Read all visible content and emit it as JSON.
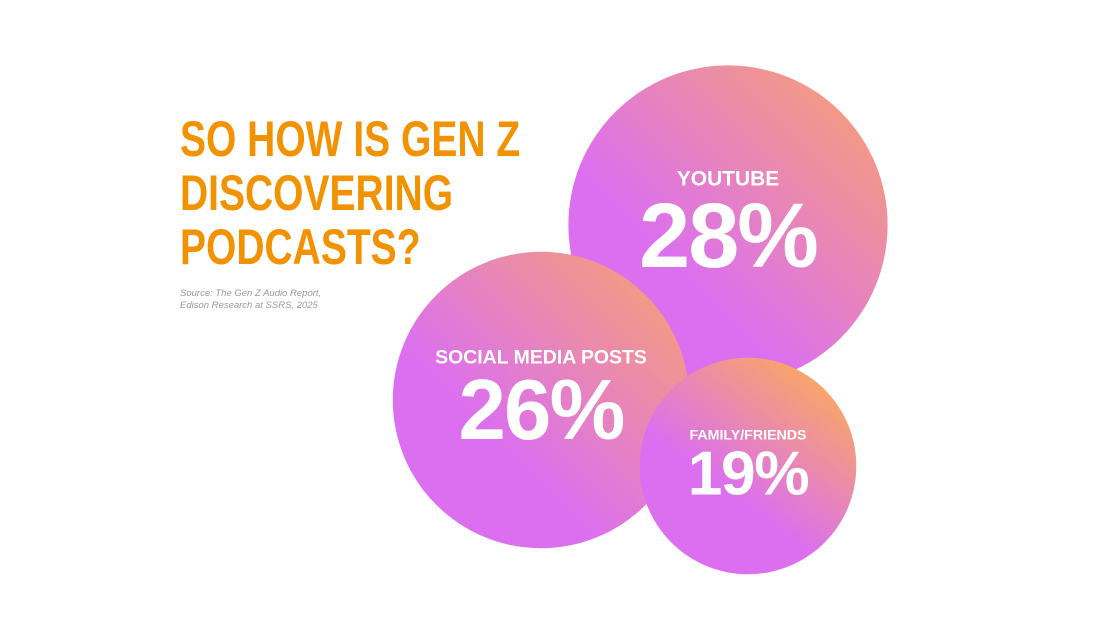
{
  "chart_data": {
    "type": "bubble",
    "title": [
      "SO HOW IS GEN Z",
      "DISCOVERING",
      "PODCASTS?"
    ],
    "source": [
      "Source: The Gen Z Audio Report,",
      "Edison Research at SSRS, 2025"
    ],
    "categories": [
      "YOUTUBE",
      "SOCIAL MEDIA POSTS",
      "FAMILY/FRIENDS"
    ],
    "values": [
      28,
      26,
      19
    ],
    "value_labels": [
      "28%",
      "26%",
      "19%"
    ],
    "colors": [
      "#db6ff0",
      "#f9a56a"
    ],
    "title_color": "#f39200"
  }
}
